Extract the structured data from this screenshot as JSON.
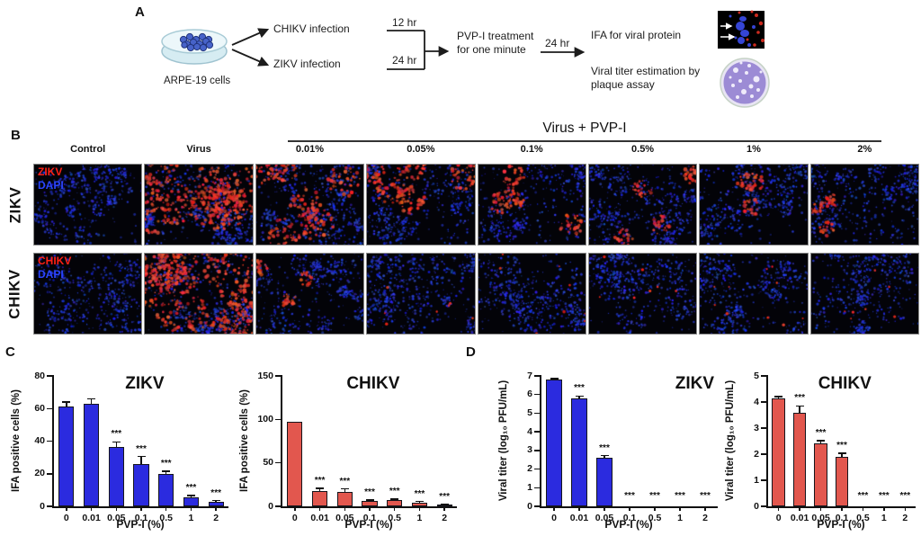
{
  "colors": {
    "bar_blue": "#2b2bdf",
    "bar_red": "#e2574e",
    "stain_red": "#ff2015",
    "dapi_blue": "#2b46ff"
  },
  "panelA": {
    "label": "A",
    "cells_label": "ARPE-19 cells",
    "branch1": "CHIKV infection",
    "branch2": "ZIKV infection",
    "time1": "12 hr",
    "time2": "24 hr",
    "treatment": "PVP-I treatment for one minute",
    "time3": "24 hr",
    "outcome1": "IFA for viral protein",
    "outcome2": "Viral titer estimation by plaque assay"
  },
  "panelB": {
    "label": "B",
    "group_header": "Virus + PVP-I",
    "columns": [
      "Control",
      "Virus",
      "0.01%",
      "0.05%",
      "0.1%",
      "0.5%",
      "1%",
      "2%"
    ],
    "rows": [
      {
        "name": "ZIKV",
        "stain_label": "ZIKV",
        "dapi_label": "DAPI",
        "red_levels": [
          0,
          0.78,
          0.5,
          0.42,
          0.3,
          0.22,
          0.18,
          0.12
        ]
      },
      {
        "name": "CHIKV",
        "stain_label": "CHIKV",
        "dapi_label": "DAPI",
        "red_levels": [
          0,
          1.0,
          0.12,
          0.04,
          0.05,
          0.04,
          0.07,
          0.04
        ]
      }
    ]
  },
  "panelC": {
    "label": "C"
  },
  "panelD": {
    "label": "D"
  },
  "chart_data": [
    {
      "panel": "C",
      "type": "bar",
      "title": "ZIKV",
      "title_align": "center",
      "bar_color": "#2b2bdf",
      "xlabel": "PVP-I (%)",
      "ylabel": "IFA positive cells (%)",
      "categories": [
        "0",
        "0.01",
        "0.05",
        "0.1",
        "0.5",
        "1",
        "2"
      ],
      "values": [
        61,
        63,
        36.5,
        26,
        20,
        5.5,
        2.5
      ],
      "errors": [
        3,
        3,
        3,
        4.5,
        1.5,
        1.2,
        1
      ],
      "sig": [
        "",
        "",
        "***",
        "***",
        "***",
        "***",
        "***"
      ],
      "ylim": [
        0,
        80
      ],
      "yticks": [
        0,
        20,
        40,
        60,
        80
      ],
      "grid": false,
      "legend": "none"
    },
    {
      "panel": "C",
      "type": "bar",
      "title": "CHIKV",
      "title_align": "center",
      "bar_color": "#e2574e",
      "xlabel": "PVP-I (%)",
      "ylabel": "IFA positive cells (%)",
      "categories": [
        "0",
        "0.01",
        "0.05",
        "0.1",
        "0.5",
        "1",
        "2"
      ],
      "values": [
        97,
        18,
        17,
        6,
        7,
        4.5,
        1.5
      ],
      "errors": [
        0,
        2.5,
        3,
        1.2,
        1.2,
        1,
        0.8
      ],
      "sig": [
        "",
        "***",
        "***",
        "***",
        "***",
        "***",
        "***"
      ],
      "ylim": [
        0,
        150
      ],
      "yticks": [
        0,
        50,
        100,
        150
      ],
      "grid": false,
      "legend": "none"
    },
    {
      "panel": "D",
      "type": "bar",
      "title": "ZIKV",
      "title_align": "right",
      "bar_color": "#2b2bdf",
      "xlabel": "PVP-I (%)",
      "ylabel": "Viral titer (log₁₀ PFU/mL)",
      "categories": [
        "0",
        "0.01",
        "0.05",
        "0.1",
        "0.5",
        "1",
        "2"
      ],
      "values": [
        6.8,
        5.8,
        2.6,
        0,
        0,
        0,
        0
      ],
      "errors": [
        0.06,
        0.12,
        0.12,
        0,
        0,
        0,
        0
      ],
      "sig": [
        "",
        "***",
        "***",
        "***",
        "***",
        "***",
        "***"
      ],
      "ylim": [
        0,
        7
      ],
      "yticks": [
        0,
        1,
        2,
        3,
        4,
        5,
        6,
        7
      ],
      "grid": false,
      "legend": "none"
    },
    {
      "panel": "D",
      "type": "bar",
      "title": "CHIKV",
      "title_align": "center",
      "bar_color": "#e2574e",
      "xlabel": "PVP-I (%)",
      "ylabel": "Viral titer (log₁₀ PFU/mL)",
      "categories": [
        "0",
        "0.01",
        "0.05",
        "0.1",
        "0.5",
        "1",
        "2"
      ],
      "values": [
        4.15,
        3.6,
        2.4,
        1.9,
        0,
        0,
        0
      ],
      "errors": [
        0.06,
        0.25,
        0.12,
        0.13,
        0,
        0,
        0
      ],
      "sig": [
        "",
        "***",
        "***",
        "***",
        "***",
        "***",
        "***"
      ],
      "ylim": [
        0,
        5
      ],
      "yticks": [
        0,
        1,
        2,
        3,
        4,
        5
      ],
      "grid": false,
      "legend": "none"
    }
  ]
}
